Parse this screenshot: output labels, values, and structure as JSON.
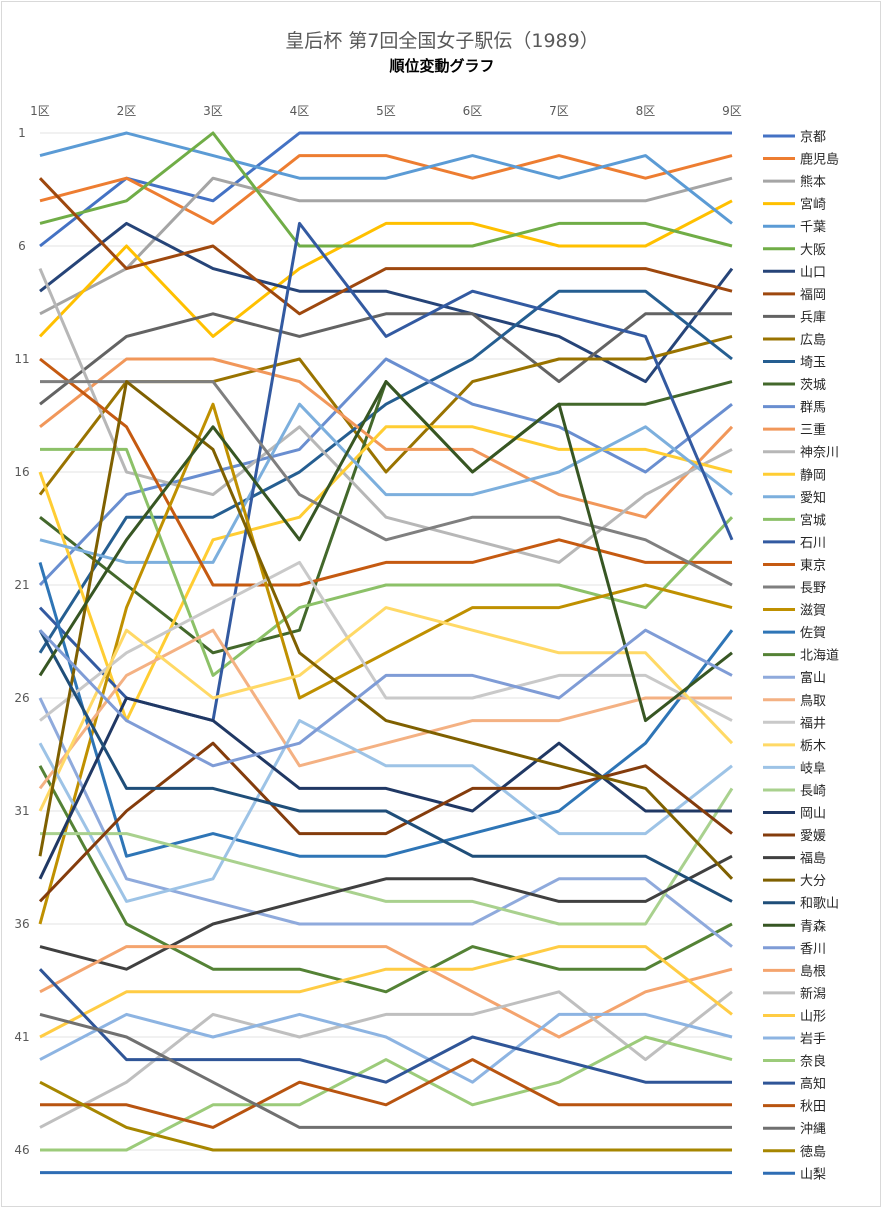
{
  "chart_data": {
    "type": "line",
    "title": "皇后杯 第7回全国女子駅伝（1989）",
    "subtitle": "順位変動グラフ",
    "categories": [
      "1区",
      "2区",
      "3区",
      "4区",
      "5区",
      "6区",
      "7区",
      "8区",
      "9区"
    ],
    "y_ticks": [
      "1",
      "6",
      "11",
      "16",
      "21",
      "26",
      "31",
      "36",
      "41",
      "46"
    ],
    "ylim": [
      1,
      47
    ],
    "y_inverted": true,
    "grid": true,
    "legend_position": "right",
    "series": [
      {
        "name": "京都",
        "color": "#4472C4",
        "values": [
          6,
          3,
          4,
          1,
          1,
          1,
          1,
          1,
          1
        ]
      },
      {
        "name": "鹿児島",
        "color": "#ED7D31",
        "values": [
          4,
          3,
          5,
          2,
          2,
          3,
          2,
          3,
          2
        ]
      },
      {
        "name": "熊本",
        "color": "#A5A5A5",
        "values": [
          9,
          7,
          3,
          4,
          4,
          4,
          4,
          4,
          3
        ]
      },
      {
        "name": "宮崎",
        "color": "#FFC000",
        "values": [
          10,
          6,
          10,
          7,
          5,
          5,
          6,
          6,
          4
        ]
      },
      {
        "name": "千葉",
        "color": "#5B9BD5",
        "values": [
          2,
          1,
          2,
          3,
          3,
          2,
          3,
          2,
          5
        ]
      },
      {
        "name": "大阪",
        "color": "#70AD47",
        "values": [
          5,
          4,
          1,
          6,
          6,
          6,
          5,
          5,
          6
        ]
      },
      {
        "name": "山口",
        "color": "#264478",
        "values": [
          8,
          5,
          7,
          8,
          8,
          9,
          10,
          12,
          7
        ]
      },
      {
        "name": "福岡",
        "color": "#9E480E",
        "values": [
          3,
          7,
          6,
          9,
          7,
          7,
          7,
          7,
          8
        ]
      },
      {
        "name": "兵庫",
        "color": "#636363",
        "values": [
          13,
          10,
          9,
          10,
          9,
          9,
          12,
          9,
          9
        ]
      },
      {
        "name": "広島",
        "color": "#997300",
        "values": [
          17,
          12,
          12,
          11,
          16,
          12,
          11,
          11,
          10
        ]
      },
      {
        "name": "埼玉",
        "color": "#255E91",
        "values": [
          24,
          18,
          18,
          16,
          13,
          11,
          8,
          8,
          11
        ]
      },
      {
        "name": "茨城",
        "color": "#43682B",
        "values": [
          18,
          21,
          24,
          23,
          12,
          16,
          13,
          13,
          12
        ]
      },
      {
        "name": "群馬",
        "color": "#698ED0",
        "values": [
          21,
          17,
          16,
          15,
          11,
          13,
          14,
          16,
          13
        ]
      },
      {
        "name": "三重",
        "color": "#F1975A",
        "values": [
          14,
          11,
          11,
          12,
          15,
          15,
          17,
          18,
          14
        ]
      },
      {
        "name": "神奈川",
        "color": "#B7B7B7",
        "values": [
          7,
          16,
          17,
          14,
          18,
          19,
          20,
          17,
          15
        ]
      },
      {
        "name": "静岡",
        "color": "#FFCD33",
        "values": [
          16,
          27,
          19,
          18,
          14,
          14,
          15,
          15,
          16
        ]
      },
      {
        "name": "愛知",
        "color": "#7CAFDD",
        "values": [
          19,
          20,
          20,
          13,
          17,
          17,
          16,
          14,
          17
        ]
      },
      {
        "name": "宮城",
        "color": "#8CC168",
        "values": [
          15,
          15,
          25,
          22,
          21,
          21,
          21,
          22,
          18
        ]
      },
      {
        "name": "石川",
        "color": "#335AA1",
        "values": [
          22,
          26,
          27,
          5,
          10,
          8,
          9,
          10,
          19
        ]
      },
      {
        "name": "東京",
        "color": "#C55A11",
        "values": [
          11,
          14,
          21,
          21,
          20,
          20,
          19,
          20,
          20
        ]
      },
      {
        "name": "長野",
        "color": "#7F7F7F",
        "values": [
          12,
          12,
          12,
          17,
          19,
          18,
          18,
          19,
          21
        ]
      },
      {
        "name": "滋賀",
        "color": "#BF9000",
        "values": [
          36,
          22,
          13,
          26,
          24,
          22,
          22,
          21,
          22
        ]
      },
      {
        "name": "佐賀",
        "color": "#2E75B6",
        "values": [
          20,
          33,
          32,
          33,
          33,
          32,
          31,
          28,
          23
        ]
      },
      {
        "name": "北海道",
        "color": "#548235",
        "values": [
          29,
          36,
          38,
          38,
          39,
          37,
          38,
          38,
          36
        ]
      },
      {
        "name": "富山",
        "color": "#8FAADC",
        "values": [
          26,
          34,
          35,
          36,
          36,
          36,
          34,
          34,
          37
        ]
      },
      {
        "name": "鳥取",
        "color": "#F4B183",
        "values": [
          30,
          25,
          23,
          29,
          28,
          27,
          27,
          26,
          26
        ]
      },
      {
        "name": "福井",
        "color": "#C9C9C9",
        "values": [
          27,
          24,
          22,
          20,
          26,
          26,
          25,
          25,
          27
        ]
      },
      {
        "name": "栃木",
        "color": "#FFD966",
        "values": [
          31,
          23,
          26,
          25,
          22,
          23,
          24,
          24,
          28
        ]
      },
      {
        "name": "岐阜",
        "color": "#9DC3E6",
        "values": [
          28,
          35,
          34,
          27,
          29,
          29,
          32,
          32,
          29
        ]
      },
      {
        "name": "長崎",
        "color": "#A9D18E",
        "values": [
          32,
          32,
          33,
          34,
          35,
          35,
          36,
          36,
          30
        ]
      },
      {
        "name": "岡山",
        "color": "#203864",
        "values": [
          34,
          26,
          27,
          30,
          30,
          31,
          28,
          31,
          31
        ]
      },
      {
        "name": "愛媛",
        "color": "#843C0C",
        "values": [
          35,
          31,
          28,
          32,
          32,
          30,
          30,
          29,
          32
        ]
      },
      {
        "name": "福島",
        "color": "#404040",
        "values": [
          37,
          38,
          36,
          35,
          34,
          34,
          35,
          35,
          33
        ]
      },
      {
        "name": "大分",
        "color": "#7F6000",
        "values": [
          33,
          12,
          15,
          24,
          27,
          28,
          29,
          30,
          34
        ]
      },
      {
        "name": "和歌山",
        "color": "#1F4E79",
        "values": [
          23,
          30,
          30,
          31,
          31,
          33,
          33,
          33,
          35
        ]
      },
      {
        "name": "青森",
        "color": "#375623",
        "values": [
          25,
          19,
          14,
          19,
          12,
          16,
          13,
          27,
          24
        ]
      },
      {
        "name": "香川",
        "color": "#7F9CD6",
        "values": [
          23,
          27,
          29,
          28,
          25,
          25,
          26,
          23,
          25
        ]
      },
      {
        "name": "島根",
        "color": "#F4A46E",
        "values": [
          39,
          37,
          37,
          37,
          37,
          39,
          41,
          39,
          38
        ]
      },
      {
        "name": "新潟",
        "color": "#BFBFBF",
        "values": [
          45,
          43,
          40,
          41,
          40,
          40,
          39,
          42,
          39
        ]
      },
      {
        "name": "山形",
        "color": "#FFCC44",
        "values": [
          41,
          39,
          39,
          39,
          38,
          38,
          37,
          37,
          40
        ]
      },
      {
        "name": "岩手",
        "color": "#8DB4E2",
        "values": [
          42,
          40,
          41,
          40,
          41,
          43,
          40,
          40,
          41
        ]
      },
      {
        "name": "奈良",
        "color": "#9CCB7A",
        "values": [
          46,
          46,
          44,
          44,
          42,
          44,
          43,
          41,
          42
        ]
      },
      {
        "name": "高知",
        "color": "#2F5597",
        "values": [
          38,
          42,
          42,
          42,
          43,
          41,
          42,
          43,
          43
        ]
      },
      {
        "name": "秋田",
        "color": "#B85410",
        "values": [
          44,
          44,
          45,
          43,
          44,
          42,
          44,
          44,
          44
        ]
      },
      {
        "name": "沖縄",
        "color": "#707070",
        "values": [
          40,
          41,
          43,
          45,
          45,
          45,
          45,
          45,
          45
        ]
      },
      {
        "name": "徳島",
        "color": "#A68600",
        "values": [
          43,
          45,
          46,
          46,
          46,
          46,
          46,
          46,
          46
        ]
      },
      {
        "name": "山梨",
        "color": "#2E6DB4",
        "values": [
          47,
          47,
          47,
          47,
          47,
          47,
          47,
          47,
          47
        ]
      }
    ]
  }
}
